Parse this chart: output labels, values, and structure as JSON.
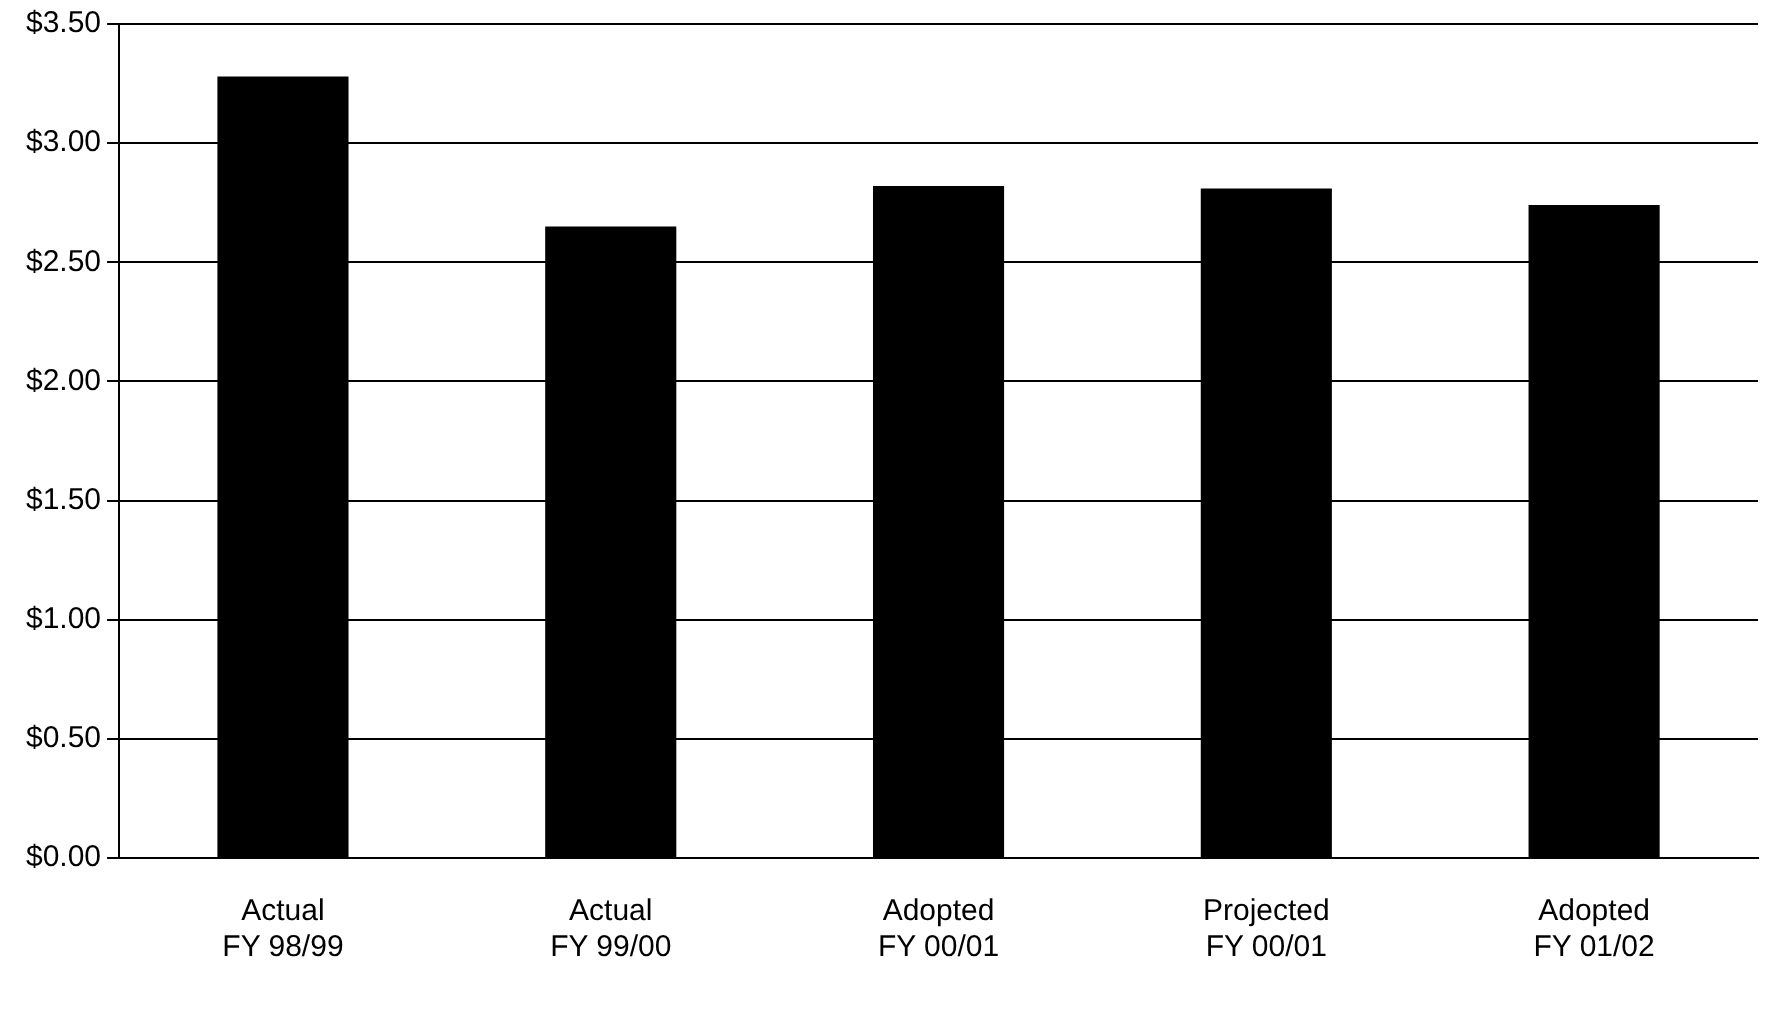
{
  "chart_data": {
    "type": "bar",
    "categories": [
      "Actual\nFY 98/99",
      "Actual\nFY 99/00",
      "Adopted\nFY 00/01",
      "Projected\nFY 00/01",
      "Adopted\nFY 01/02"
    ],
    "values": [
      3.28,
      2.65,
      2.82,
      2.81,
      2.74
    ],
    "color": "#000000",
    "ylim": [
      0,
      3.5
    ],
    "yticks": [
      {
        "value": 0,
        "label": "$0.00"
      },
      {
        "value": 0.5,
        "label": "$0.50"
      },
      {
        "value": 1,
        "label": "$1.00"
      },
      {
        "value": 1.5,
        "label": "$1.50"
      },
      {
        "value": 2,
        "label": "$2.00"
      },
      {
        "value": 2.5,
        "label": "$2.50"
      },
      {
        "value": 3,
        "label": "$3.00"
      },
      {
        "value": 3.5,
        "label": "$3.50"
      }
    ],
    "grid": "y",
    "legend": false
  }
}
